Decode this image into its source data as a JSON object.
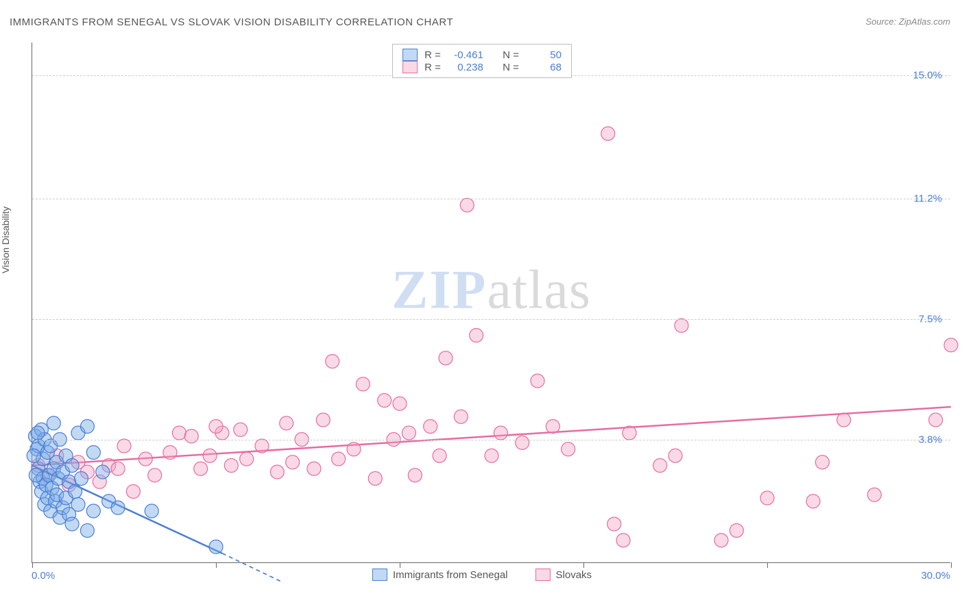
{
  "title": "IMMIGRANTS FROM SENEGAL VS SLOVAK VISION DISABILITY CORRELATION CHART",
  "source_prefix": "Source: ",
  "source_name": "ZipAtlas.com",
  "yaxis_title": "Vision Disability",
  "watermark": {
    "zip": "ZIP",
    "atlas": "atlas"
  },
  "chart": {
    "type": "scatter",
    "background_color": "#ffffff",
    "grid_color": "#cccccc",
    "axis_color": "#666666",
    "tick_label_color": "#4a7dd4",
    "tick_label_fontsize": 15,
    "xlim": [
      0.0,
      30.0
    ],
    "ylim": [
      0.0,
      16.0
    ],
    "x_ticks": [
      0.0,
      6.0,
      12.0,
      18.0,
      24.0,
      30.0
    ],
    "y_gridlines": [
      {
        "value": 15.0,
        "label": "15.0%"
      },
      {
        "value": 11.2,
        "label": "11.2%"
      },
      {
        "value": 7.5,
        "label": "7.5%"
      },
      {
        "value": 3.8,
        "label": "3.8%"
      }
    ],
    "x_min_label": "0.0%",
    "x_max_label": "30.0%",
    "marker_radius": 10,
    "marker_stroke_width": 1.2,
    "trend_line_width": 2.5,
    "trend_dash_pattern": "6,5",
    "series": [
      {
        "id": "senegal",
        "label": "Immigrants from Senegal",
        "fill_color": "rgba(120,170,230,0.45)",
        "stroke_color": "#4a7dd4",
        "R": "-0.461",
        "N": "50",
        "trend": {
          "x1": 0.0,
          "y1": 3.0,
          "x2_solid": 6.2,
          "y2_solid": 0.3,
          "x2_dash": 8.2,
          "y2_dash": -0.6
        },
        "points": [
          [
            0.1,
            3.9
          ],
          [
            0.15,
            3.5
          ],
          [
            0.2,
            2.9
          ],
          [
            0.2,
            3.6
          ],
          [
            0.25,
            2.5
          ],
          [
            0.3,
            4.1
          ],
          [
            0.3,
            2.2
          ],
          [
            0.35,
            3.2
          ],
          [
            0.35,
            2.6
          ],
          [
            0.4,
            3.8
          ],
          [
            0.4,
            1.8
          ],
          [
            0.45,
            2.4
          ],
          [
            0.5,
            3.4
          ],
          [
            0.5,
            2.0
          ],
          [
            0.55,
            2.7
          ],
          [
            0.6,
            3.6
          ],
          [
            0.6,
            1.6
          ],
          [
            0.65,
            2.3
          ],
          [
            0.7,
            4.3
          ],
          [
            0.7,
            2.9
          ],
          [
            0.75,
            1.9
          ],
          [
            0.8,
            3.1
          ],
          [
            0.8,
            2.1
          ],
          [
            0.85,
            2.6
          ],
          [
            0.9,
            1.4
          ],
          [
            0.9,
            3.8
          ],
          [
            1.0,
            2.8
          ],
          [
            1.0,
            1.7
          ],
          [
            1.1,
            3.3
          ],
          [
            1.1,
            2.0
          ],
          [
            1.2,
            2.5
          ],
          [
            1.2,
            1.5
          ],
          [
            1.3,
            3.0
          ],
          [
            1.3,
            1.2
          ],
          [
            1.4,
            2.2
          ],
          [
            1.5,
            4.0
          ],
          [
            1.5,
            1.8
          ],
          [
            1.6,
            2.6
          ],
          [
            1.8,
            4.2
          ],
          [
            1.8,
            1.0
          ],
          [
            2.0,
            1.6
          ],
          [
            2.0,
            3.4
          ],
          [
            2.3,
            2.8
          ],
          [
            2.5,
            1.9
          ],
          [
            2.8,
            1.7
          ],
          [
            0.05,
            3.3
          ],
          [
            0.12,
            2.7
          ],
          [
            0.18,
            4.0
          ],
          [
            3.9,
            1.6
          ],
          [
            6.0,
            0.5
          ]
        ]
      },
      {
        "id": "slovaks",
        "label": "Slovaks",
        "fill_color": "rgba(240,160,190,0.40)",
        "stroke_color": "#e76ba2",
        "R": "0.238",
        "N": "68",
        "trend": {
          "x1": 0.0,
          "y1": 3.0,
          "x2_solid": 30.0,
          "y2_solid": 4.8,
          "x2_dash": 30.0,
          "y2_dash": 4.8
        },
        "points": [
          [
            0.2,
            3.0
          ],
          [
            0.5,
            2.7
          ],
          [
            0.8,
            3.3
          ],
          [
            1.2,
            2.4
          ],
          [
            1.5,
            3.1
          ],
          [
            1.8,
            2.8
          ],
          [
            2.2,
            2.5
          ],
          [
            2.5,
            3.0
          ],
          [
            2.8,
            2.9
          ],
          [
            3.0,
            3.6
          ],
          [
            3.3,
            2.2
          ],
          [
            3.7,
            3.2
          ],
          [
            4.0,
            2.7
          ],
          [
            4.5,
            3.4
          ],
          [
            4.8,
            4.0
          ],
          [
            5.2,
            3.9
          ],
          [
            5.5,
            2.9
          ],
          [
            5.8,
            3.3
          ],
          [
            6.2,
            4.0
          ],
          [
            6.5,
            3.0
          ],
          [
            6.8,
            4.1
          ],
          [
            7.0,
            3.2
          ],
          [
            7.5,
            3.6
          ],
          [
            8.0,
            2.8
          ],
          [
            8.3,
            4.3
          ],
          [
            8.5,
            3.1
          ],
          [
            8.8,
            3.8
          ],
          [
            9.2,
            2.9
          ],
          [
            9.5,
            4.4
          ],
          [
            9.8,
            6.2
          ],
          [
            10.0,
            3.2
          ],
          [
            10.5,
            3.5
          ],
          [
            10.8,
            5.5
          ],
          [
            11.2,
            2.6
          ],
          [
            11.5,
            5.0
          ],
          [
            11.8,
            3.8
          ],
          [
            12.0,
            4.9
          ],
          [
            12.3,
            4.0
          ],
          [
            12.5,
            2.7
          ],
          [
            13.0,
            4.2
          ],
          [
            13.3,
            3.3
          ],
          [
            13.5,
            6.3
          ],
          [
            14.0,
            4.5
          ],
          [
            14.2,
            11.0
          ],
          [
            14.5,
            7.0
          ],
          [
            15.0,
            3.3
          ],
          [
            15.3,
            4.0
          ],
          [
            16.0,
            3.7
          ],
          [
            16.5,
            5.6
          ],
          [
            17.0,
            4.2
          ],
          [
            17.5,
            3.5
          ],
          [
            18.8,
            13.2
          ],
          [
            19.0,
            1.2
          ],
          [
            19.3,
            0.7
          ],
          [
            19.5,
            4.0
          ],
          [
            20.5,
            3.0
          ],
          [
            21.0,
            3.3
          ],
          [
            21.2,
            7.3
          ],
          [
            22.5,
            0.7
          ],
          [
            23.0,
            1.0
          ],
          [
            24.0,
            2.0
          ],
          [
            25.5,
            1.9
          ],
          [
            25.8,
            3.1
          ],
          [
            26.5,
            4.4
          ],
          [
            27.5,
            2.1
          ],
          [
            29.5,
            4.4
          ],
          [
            30.0,
            6.7
          ],
          [
            6.0,
            4.2
          ]
        ]
      }
    ]
  },
  "legend_box": {
    "R_label": "R =",
    "N_label": "N ="
  },
  "bottom_legend": {
    "items": [
      "senegal",
      "slovaks"
    ]
  }
}
